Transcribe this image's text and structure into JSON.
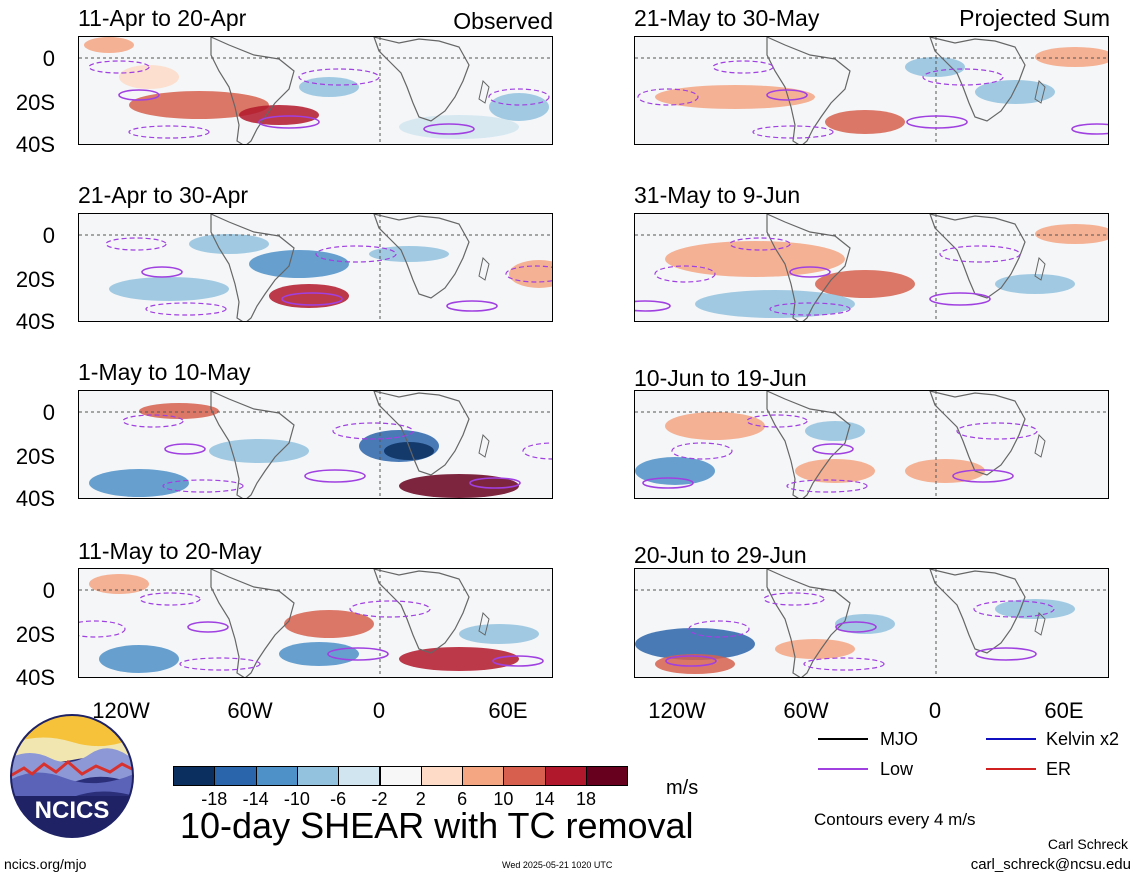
{
  "panels": [
    {
      "title": "11-Apr to 20-Apr",
      "label": "Observed"
    },
    {
      "title": "21-Apr to 30-Apr",
      "label": ""
    },
    {
      "title": "1-May to 10-May",
      "label": ""
    },
    {
      "title": "11-May to 20-May",
      "label": ""
    },
    {
      "title": "21-May to 30-May",
      "label": "Projected Sum"
    },
    {
      "title": "31-May to 9-Jun",
      "label": ""
    },
    {
      "title": "10-Jun to 19-Jun",
      "label": ""
    },
    {
      "title": "20-Jun to 29-Jun",
      "label": ""
    }
  ],
  "lat_labels": [
    "0",
    "20S",
    "40S"
  ],
  "lon_labels": [
    "120W",
    "60W",
    "0",
    "60E"
  ],
  "legend": [
    {
      "name": "MJO",
      "color": "#000000"
    },
    {
      "name": "Kelvin x2",
      "color": "#1010c0"
    },
    {
      "name": "Low",
      "color": "#a040e0"
    },
    {
      "name": "ER",
      "color": "#d02020"
    }
  ],
  "colorbar": {
    "colors": [
      "#0b2f5e",
      "#2a64aa",
      "#4d91c8",
      "#92c2de",
      "#d1e5f0",
      "#f7f7f7",
      "#fddbc7",
      "#f4a582",
      "#d6604d",
      "#b2182b",
      "#67001f"
    ],
    "ticks": [
      "-18",
      "-14",
      "-10",
      "-6",
      "-2",
      "2",
      "6",
      "10",
      "14",
      "18"
    ],
    "units": "m/s"
  },
  "main_title": "10-day SHEAR with TC removal",
  "contours_note": "Contours every 4 m/s",
  "logo_text": "NCICS",
  "website": "ncics.org/mjo",
  "timestamp": "Wed 2025-05-21 1020 UTC",
  "author": "Carl Schreck",
  "email": "carl_schreck@ncsu.edu"
}
